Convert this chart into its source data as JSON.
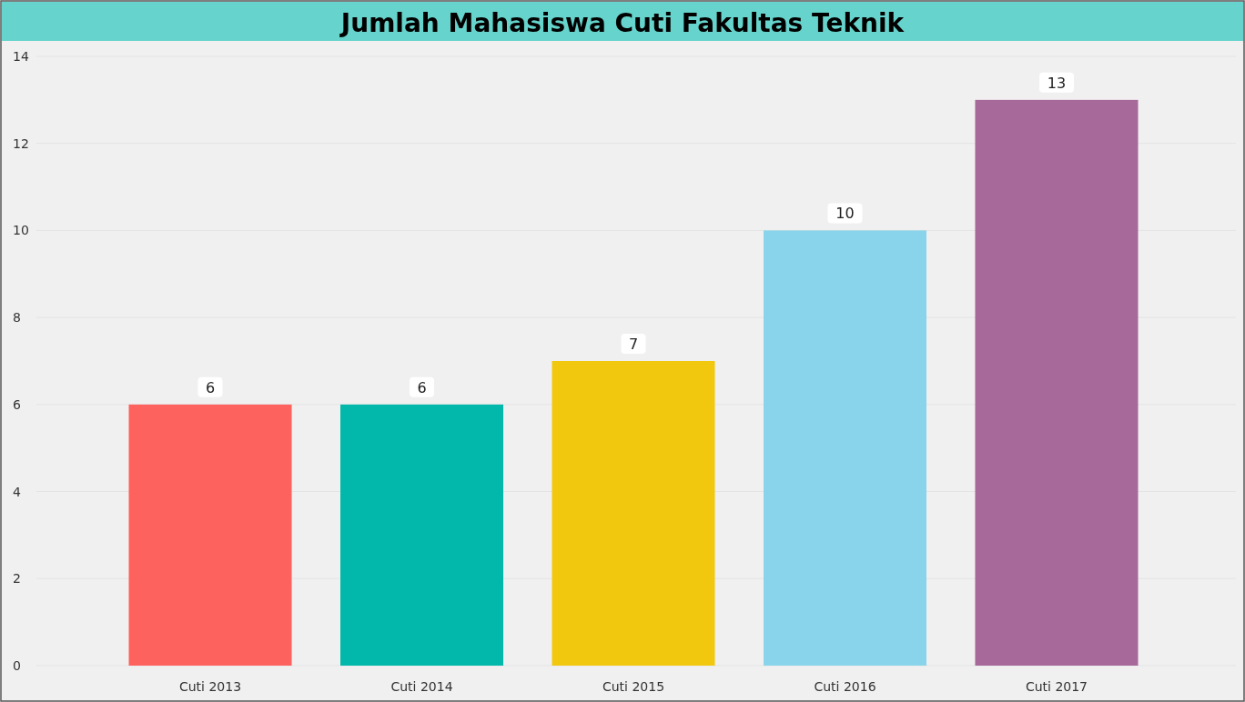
{
  "chart_data": {
    "type": "bar",
    "title": "Jumlah Mahasiswa Cuti Fakultas Teknik",
    "categories": [
      "Cuti 2013",
      "Cuti 2014",
      "Cuti 2015",
      "Cuti 2016",
      "Cuti 2017"
    ],
    "values": [
      6,
      6,
      7,
      10,
      13
    ],
    "colors": [
      "#fd625e",
      "#01b8aa",
      "#f2c80f",
      "#8ad4eb",
      "#a66999"
    ],
    "ylim": [
      0,
      14
    ],
    "yticks": [
      0,
      2,
      4,
      6,
      8,
      10,
      12,
      14
    ],
    "grid": "y",
    "data_labels": true
  }
}
